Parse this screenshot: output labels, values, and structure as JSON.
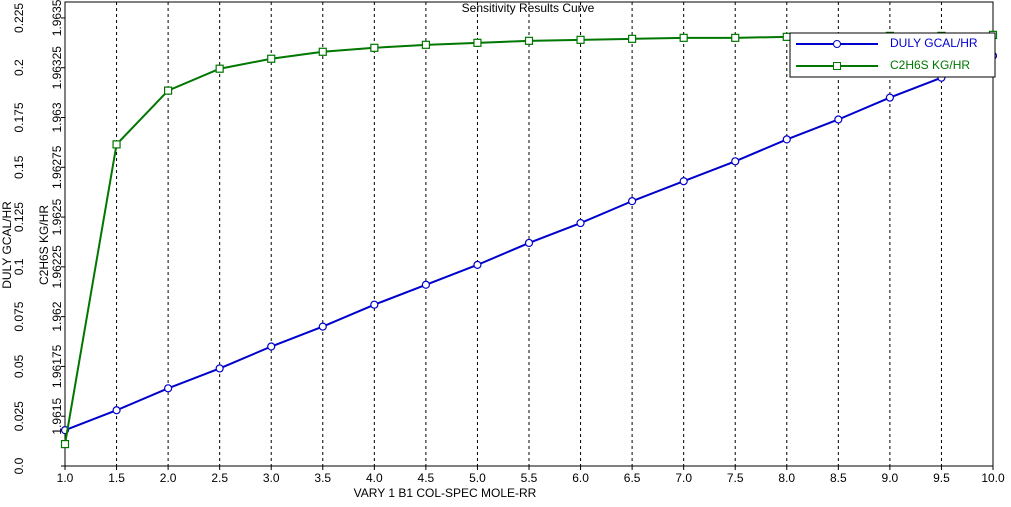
{
  "chart_data": {
    "type": "line",
    "title": "Sensitivity Results Curve",
    "x_label": "VARY   1 B1 COL-SPEC MOLE-RR",
    "y_label": "DULY GCAL/HR",
    "y2_label": "C2H6S KG/HR",
    "x": [
      1.0,
      1.5,
      2.0,
      2.5,
      3.0,
      3.5,
      4.0,
      4.5,
      5.0,
      5.5,
      6.0,
      6.5,
      7.0,
      7.5,
      8.0,
      8.5,
      9.0,
      9.5,
      10.0
    ],
    "xlim": [
      1.0,
      10.0
    ],
    "xticks": [
      {
        "value": 1.0,
        "label": "1.0"
      },
      1.5,
      {
        "value": 2.0,
        "label": "2.0"
      },
      2.5,
      {
        "value": 3.0,
        "label": "3.0"
      },
      3.5,
      {
        "value": 4.0,
        "label": "4.0"
      },
      4.5,
      {
        "value": 5.0,
        "label": "5.0"
      },
      5.5,
      {
        "value": 6.0,
        "label": "6.0"
      },
      6.5,
      {
        "value": 7.0,
        "label": "7.0"
      },
      7.5,
      {
        "value": 8.0,
        "label": "8.0"
      },
      8.5,
      {
        "value": 9.0,
        "label": "9.0"
      },
      9.5,
      {
        "value": 10.0,
        "label": "10.0"
      }
    ],
    "ylim": [
      0,
      0.233
    ],
    "yticks": [
      {
        "value": 0,
        "label": "0.0"
      },
      0.025,
      0.05,
      0.075,
      0.1,
      0.125,
      0.15,
      0.175,
      0.2,
      0.225
    ],
    "y2lim": [
      1.96125,
      1.96358
    ],
    "y2ticks": [
      1.9615,
      1.96175,
      1.962,
      1.96225,
      1.9625,
      1.96275,
      1.963,
      1.96325,
      1.9635
    ],
    "grid": true,
    "legend": "upper right",
    "series": [
      {
        "name": "DULY GCAL/HR",
        "color": "#0000cc",
        "marker": "circle",
        "values": [
          0.018,
          0.028,
          0.039,
          0.049,
          0.06,
          0.07,
          0.081,
          0.091,
          0.101,
          0.112,
          0.122,
          0.133,
          0.143,
          0.153,
          0.164,
          0.174,
          0.185,
          0.195,
          0.206
        ]
      },
      {
        "name": "C2H6S KG/HR",
        "color": "#007700",
        "marker": "square",
        "axis": "y2",
        "values": [
          1.96136,
          1.962865,
          1.963135,
          1.963245,
          1.963295,
          1.96333,
          1.96335,
          1.963365,
          1.963375,
          1.963385,
          1.96339,
          1.963395,
          1.9634,
          1.9634,
          1.963405,
          1.963405,
          1.96341,
          1.96341,
          1.963415
        ]
      }
    ]
  }
}
